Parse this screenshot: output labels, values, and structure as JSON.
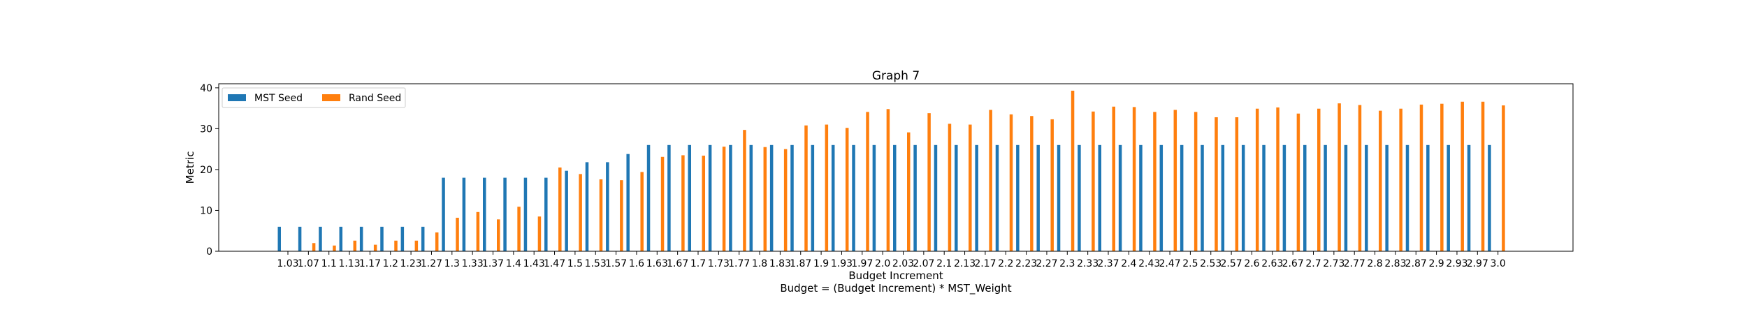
{
  "chart_data": {
    "type": "bar",
    "title": "Graph 7",
    "xlabel": "Budget Increment",
    "xlabel_line2": "Budget = (Budget Increment) * MST_Weight",
    "ylabel": "Metric",
    "ylim": [
      0,
      41
    ],
    "yticks": [
      0,
      10,
      20,
      30,
      40
    ],
    "grid": false,
    "legend_position": "top-left",
    "categories": [
      "1.03",
      "1.07",
      "1.1",
      "1.13",
      "1.17",
      "1.2",
      "1.23",
      "1.27",
      "1.3",
      "1.33",
      "1.37",
      "1.4",
      "1.43",
      "1.47",
      "1.5",
      "1.53",
      "1.57",
      "1.6",
      "1.63",
      "1.67",
      "1.7",
      "1.73",
      "1.77",
      "1.8",
      "1.83",
      "1.87",
      "1.9",
      "1.93",
      "1.97",
      "2.0",
      "2.03",
      "2.07",
      "2.1",
      "2.13",
      "2.17",
      "2.2",
      "2.23",
      "2.27",
      "2.3",
      "2.33",
      "2.37",
      "2.4",
      "2.43",
      "2.47",
      "2.5",
      "2.53",
      "2.57",
      "2.6",
      "2.63",
      "2.67",
      "2.7",
      "2.73",
      "2.77",
      "2.8",
      "2.83",
      "2.87",
      "2.9",
      "2.93",
      "2.97",
      "3.0"
    ],
    "series": [
      {
        "name": "MST Seed",
        "color": "#1f77b4",
        "values": [
          6,
          6,
          6,
          6,
          6,
          6,
          6,
          6,
          18,
          18,
          18,
          18,
          18,
          18,
          19.7,
          21.8,
          21.8,
          23.8,
          26,
          26,
          26,
          26,
          26,
          26,
          26,
          26,
          26,
          26,
          26,
          26,
          26,
          26,
          26,
          26,
          26,
          26,
          26,
          26,
          26,
          26,
          26,
          26,
          26,
          26,
          26,
          26,
          26,
          26,
          26,
          26,
          26,
          26,
          26,
          26,
          26,
          26,
          26,
          26,
          26,
          26
        ]
      },
      {
        "name": "Rand Seed",
        "color": "#ff7f0e",
        "values": [
          0,
          2,
          1.4,
          2.6,
          1.6,
          2.6,
          2.6,
          4.6,
          8.2,
          9.6,
          7.8,
          10.9,
          8.5,
          20.5,
          18.9,
          17.6,
          17.4,
          19.4,
          23.1,
          23.5,
          23.4,
          25.6,
          29.7,
          25.5,
          25,
          30.8,
          31,
          30.2,
          34.1,
          34.8,
          29.1,
          33.8,
          31.2,
          31,
          34.6,
          33.5,
          33.1,
          32.3,
          39.3,
          34.2,
          35.4,
          35.3,
          34.1,
          34.6,
          34.1,
          32.8,
          32.8,
          34.9,
          35.2,
          33.7,
          34.9,
          36.2,
          35.8,
          34.4,
          34.9,
          35.9,
          36.1,
          36.6,
          36.6,
          35.7
        ]
      }
    ]
  }
}
